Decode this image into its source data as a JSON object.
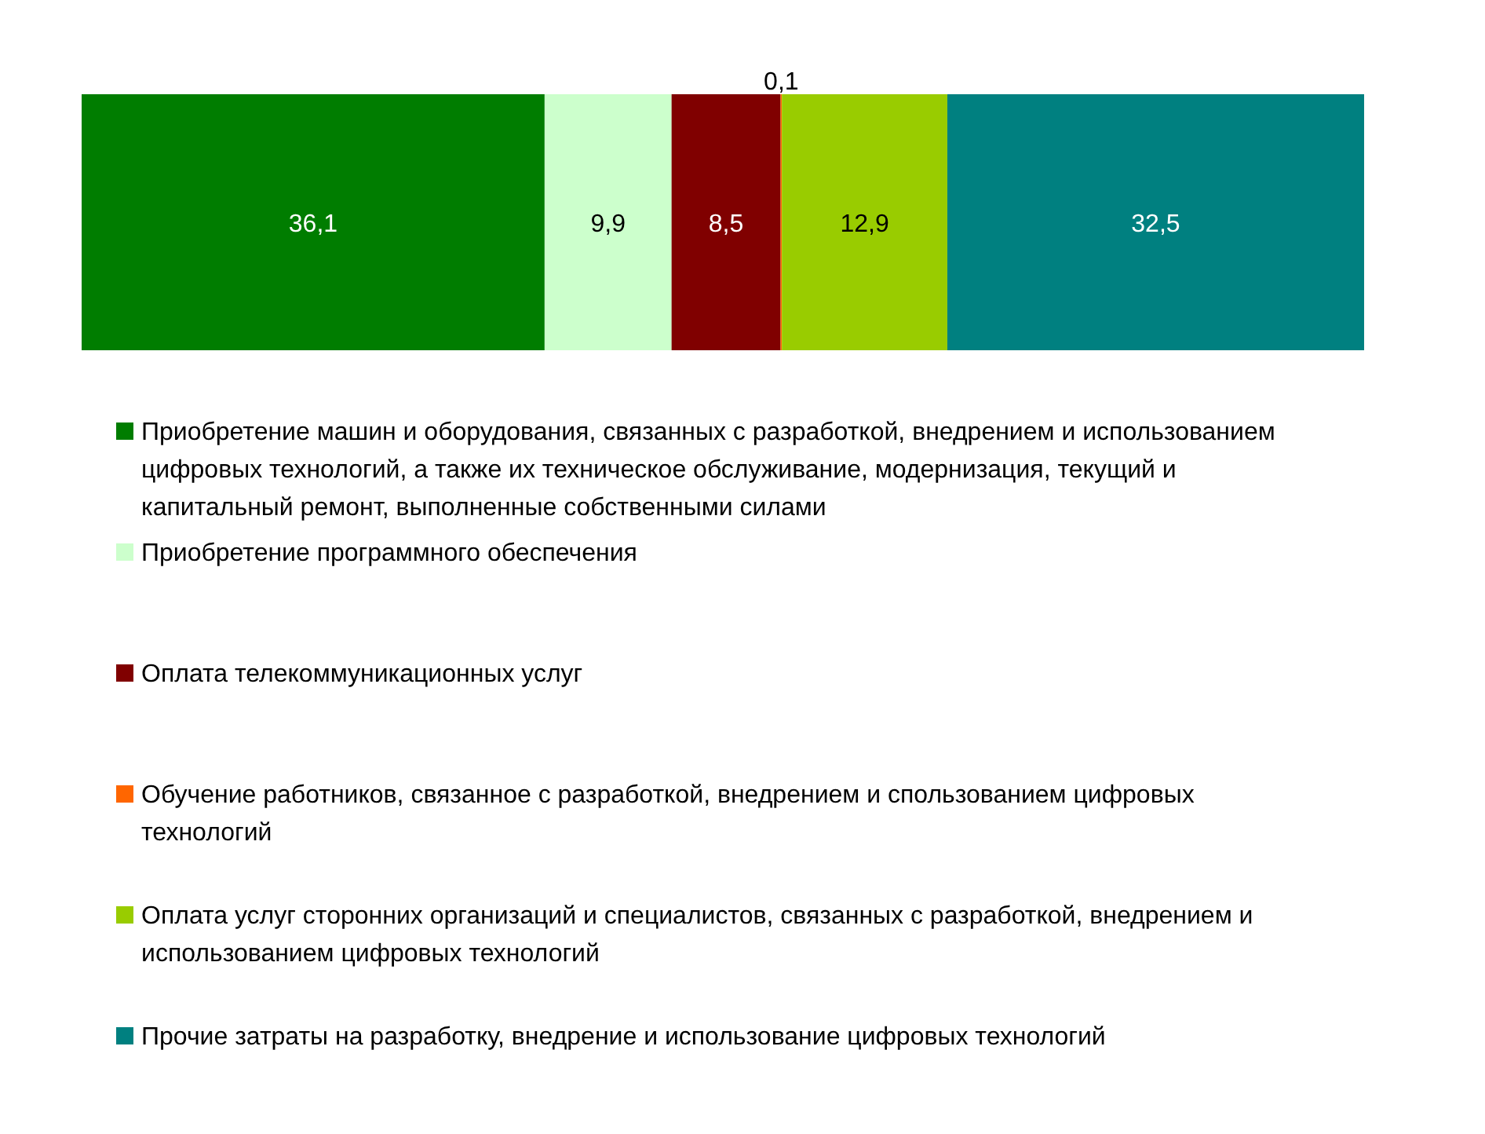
{
  "chart_data": {
    "type": "bar",
    "orientation": "horizontal",
    "stacked": true,
    "categories": [
      null
    ],
    "xlim": [
      0,
      100
    ],
    "tick_labels": false,
    "legend": "bottom",
    "series": [
      {
        "name": "Приобретение машин и оборудования, связанных с разработкой, внедрением и использованием цифровых технологий, а также их техническое обслуживание, модернизация, текущий и капитальный ремонт, выполненные собственными силами",
        "color": "#007d00",
        "values": [
          36.1
        ],
        "value_labels": [
          "36,1"
        ]
      },
      {
        "name": "Приобретение программного обеспечения",
        "color": "#ccffcc",
        "values": [
          9.9
        ],
        "value_labels": [
          "9,9"
        ]
      },
      {
        "name": "Оплата телекоммуникационных услуг",
        "color": "#800000",
        "values": [
          8.5
        ],
        "value_labels": [
          "8,5"
        ]
      },
      {
        "name": "Обучение работников, связанное с разработкой, внедрением и спользованием цифровых технологий",
        "color": "#ff6600",
        "values": [
          0.1
        ],
        "value_labels": [
          "0,1"
        ]
      },
      {
        "name": "Оплата услуг сторонних организаций и специалистов, связанных с разработкой, внедрением и использованием цифровых технологий",
        "color": "#99cc00",
        "values": [
          12.9
        ],
        "value_labels": [
          "12,9"
        ]
      },
      {
        "name": "Прочие затраты на разработку, внедрение и использование цифровых технологий",
        "color": "#008080",
        "values": [
          32.5
        ],
        "value_labels": [
          "32,5"
        ]
      }
    ]
  }
}
